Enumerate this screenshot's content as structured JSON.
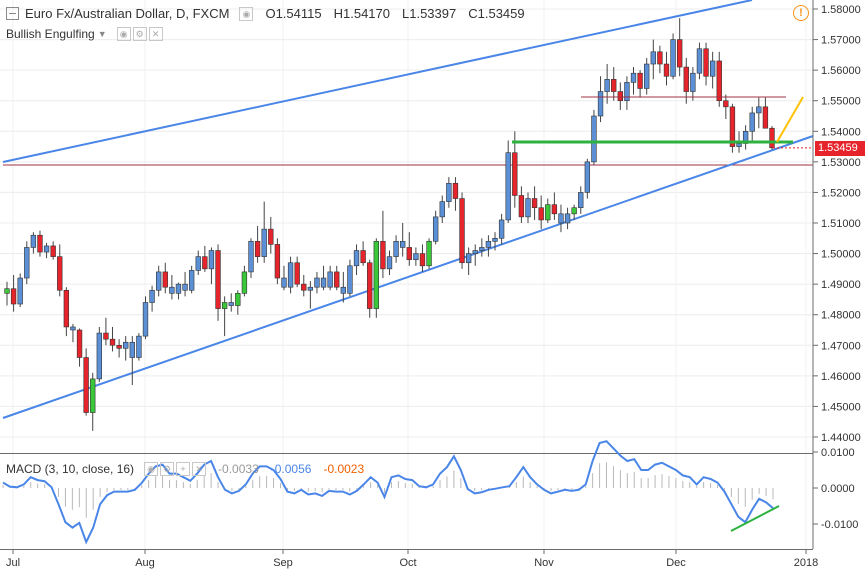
{
  "header": {
    "symbol": "Euro Fx/Australian Dollar, D, FXCM",
    "open_label": "O",
    "open": "1.54115",
    "high_label": "H",
    "high": "1.54170",
    "low_label": "L",
    "low": "1.53397",
    "close_label": "C",
    "close": "1.53459",
    "last_price": "1.53459",
    "alert_glyph": "!",
    "pattern_indicator": "Bullish Engulfing"
  },
  "macd": {
    "label": "MACD (3, 10, close, 16)",
    "v1": "-0.0033",
    "v2": "-0.0056",
    "v3": "-0.0023",
    "ticks": [
      "0.0100",
      "0.0000",
      "-0.0100"
    ]
  },
  "colors": {
    "up": "#3ac73a",
    "down": "#e6242b",
    "neutral": "#5b8fd6",
    "trend": "#4a86e8",
    "support": "#2db240",
    "resistance": "#a03040",
    "arrow": "#ffc200",
    "macd_line": "#4a86e8",
    "macd_hist": "#b8b8b8",
    "divergence": "#2db240",
    "macd_v1": "#999999",
    "macd_v2": "#4a86e8",
    "macd_v3": "#f06000"
  },
  "chart_data": {
    "type": "candlestick",
    "title": "Euro Fx/Australian Dollar, D, FXCM",
    "ylim": [
      1.432,
      1.582
    ],
    "yticks": [
      "1.44000",
      "1.45000",
      "1.46000",
      "1.47000",
      "1.48000",
      "1.49000",
      "1.50000",
      "1.51000",
      "1.52000",
      "1.53000",
      "1.54000",
      "1.55000",
      "1.56000",
      "1.57000",
      "1.58000"
    ],
    "x_labels": [
      "Jul",
      "Aug",
      "Sep",
      "Oct",
      "Nov",
      "Dec",
      "2018"
    ],
    "candles": [
      [
        1.487,
        1.4908,
        1.483,
        1.4885,
        "up"
      ],
      [
        1.4885,
        1.493,
        1.481,
        1.4835,
        "down"
      ],
      [
        1.4835,
        1.4935,
        1.4825,
        1.492,
        "neutral"
      ],
      [
        1.492,
        1.504,
        1.49,
        1.502,
        "neutral"
      ],
      [
        1.502,
        1.507,
        1.5,
        1.506,
        "neutral"
      ],
      [
        1.506,
        1.5075,
        1.499,
        1.5005,
        "down"
      ],
      [
        1.5005,
        1.5035,
        1.4985,
        1.5025,
        "neutral"
      ],
      [
        1.5025,
        1.504,
        1.498,
        1.499,
        "down"
      ],
      [
        1.499,
        1.503,
        1.486,
        1.488,
        "down"
      ],
      [
        1.488,
        1.489,
        1.473,
        1.476,
        "down"
      ],
      [
        1.476,
        1.477,
        1.471,
        1.475,
        "neutral"
      ],
      [
        1.475,
        1.4755,
        1.463,
        1.466,
        "down"
      ],
      [
        1.466,
        1.469,
        1.447,
        1.448,
        "down"
      ],
      [
        1.448,
        1.461,
        1.442,
        1.459,
        "up"
      ],
      [
        1.459,
        1.476,
        1.458,
        1.474,
        "neutral"
      ],
      [
        1.474,
        1.479,
        1.47,
        1.472,
        "down"
      ],
      [
        1.472,
        1.476,
        1.468,
        1.47,
        "down"
      ],
      [
        1.47,
        1.472,
        1.466,
        1.469,
        "down"
      ],
      [
        1.469,
        1.473,
        1.465,
        1.471,
        "neutral"
      ],
      [
        1.471,
        1.473,
        1.457,
        1.466,
        "neutral"
      ],
      [
        1.466,
        1.474,
        1.465,
        1.473,
        "neutral"
      ],
      [
        1.473,
        1.486,
        1.472,
        1.484,
        "neutral"
      ],
      [
        1.484,
        1.4895,
        1.481,
        1.488,
        "neutral"
      ],
      [
        1.488,
        1.496,
        1.486,
        1.494,
        "neutral"
      ],
      [
        1.494,
        1.497,
        1.487,
        1.489,
        "down"
      ],
      [
        1.489,
        1.493,
        1.485,
        1.487,
        "neutral"
      ],
      [
        1.487,
        1.4905,
        1.485,
        1.49,
        "neutral"
      ],
      [
        1.49,
        1.494,
        1.486,
        1.488,
        "neutral"
      ],
      [
        1.488,
        1.496,
        1.487,
        1.4945,
        "neutral"
      ],
      [
        1.4945,
        1.501,
        1.493,
        1.499,
        "neutral"
      ],
      [
        1.499,
        1.5025,
        1.494,
        1.495,
        "down"
      ],
      [
        1.495,
        1.502,
        1.49,
        1.501,
        "neutral"
      ],
      [
        1.501,
        1.503,
        1.478,
        1.482,
        "down"
      ],
      [
        1.482,
        1.486,
        1.473,
        1.484,
        "up"
      ],
      [
        1.484,
        1.487,
        1.481,
        1.483,
        "neutral"
      ],
      [
        1.483,
        1.488,
        1.48,
        1.487,
        "up"
      ],
      [
        1.487,
        1.496,
        1.486,
        1.494,
        "up"
      ],
      [
        1.494,
        1.505,
        1.492,
        1.504,
        "neutral"
      ],
      [
        1.504,
        1.509,
        1.497,
        1.499,
        "down"
      ],
      [
        1.499,
        1.517,
        1.497,
        1.508,
        "neutral"
      ],
      [
        1.508,
        1.512,
        1.5,
        1.503,
        "down"
      ],
      [
        1.503,
        1.505,
        1.49,
        1.492,
        "down"
      ],
      [
        1.492,
        1.496,
        1.488,
        1.489,
        "neutral"
      ],
      [
        1.489,
        1.499,
        1.487,
        1.497,
        "neutral"
      ],
      [
        1.497,
        1.499,
        1.489,
        1.49,
        "down"
      ],
      [
        1.49,
        1.493,
        1.486,
        1.488,
        "down"
      ],
      [
        1.488,
        1.491,
        1.482,
        1.489,
        "neutral"
      ],
      [
        1.489,
        1.494,
        1.487,
        1.492,
        "neutral"
      ],
      [
        1.492,
        1.496,
        1.488,
        1.489,
        "neutral"
      ],
      [
        1.489,
        1.496,
        1.488,
        1.494,
        "neutral"
      ],
      [
        1.494,
        1.496,
        1.488,
        1.489,
        "down"
      ],
      [
        1.489,
        1.494,
        1.484,
        1.487,
        "neutral"
      ],
      [
        1.487,
        1.498,
        1.486,
        1.496,
        "neutral"
      ],
      [
        1.496,
        1.503,
        1.493,
        1.501,
        "neutral"
      ],
      [
        1.501,
        1.504,
        1.496,
        1.497,
        "down"
      ],
      [
        1.497,
        1.498,
        1.479,
        1.482,
        "down"
      ],
      [
        1.482,
        1.505,
        1.479,
        1.504,
        "up"
      ],
      [
        1.504,
        1.514,
        1.492,
        1.495,
        "down"
      ],
      [
        1.495,
        1.501,
        1.493,
        1.499,
        "neutral"
      ],
      [
        1.499,
        1.506,
        1.497,
        1.504,
        "neutral"
      ],
      [
        1.504,
        1.51,
        1.499,
        1.502,
        "neutral"
      ],
      [
        1.502,
        1.507,
        1.496,
        1.498,
        "down"
      ],
      [
        1.498,
        1.502,
        1.496,
        1.5,
        "neutral"
      ],
      [
        1.5,
        1.503,
        1.494,
        1.496,
        "down"
      ],
      [
        1.496,
        1.505,
        1.495,
        1.504,
        "up"
      ],
      [
        1.504,
        1.514,
        1.503,
        1.512,
        "neutral"
      ],
      [
        1.512,
        1.519,
        1.51,
        1.517,
        "neutral"
      ],
      [
        1.517,
        1.525,
        1.515,
        1.523,
        "neutral"
      ],
      [
        1.523,
        1.525,
        1.514,
        1.518,
        "down"
      ],
      [
        1.518,
        1.52,
        1.495,
        1.497,
        "down"
      ],
      [
        1.497,
        1.502,
        1.493,
        1.5,
        "neutral"
      ],
      [
        1.5,
        1.503,
        1.496,
        1.501,
        "neutral"
      ],
      [
        1.501,
        1.505,
        1.499,
        1.502,
        "neutral"
      ],
      [
        1.502,
        1.506,
        1.499,
        1.504,
        "neutral"
      ],
      [
        1.504,
        1.507,
        1.501,
        1.505,
        "neutral"
      ],
      [
        1.505,
        1.513,
        1.503,
        1.511,
        "neutral"
      ],
      [
        1.511,
        1.537,
        1.51,
        1.533,
        "neutral"
      ],
      [
        1.533,
        1.54,
        1.515,
        1.519,
        "down"
      ],
      [
        1.519,
        1.522,
        1.51,
        1.512,
        "down"
      ],
      [
        1.512,
        1.52,
        1.51,
        1.518,
        "neutral"
      ],
      [
        1.518,
        1.522,
        1.511,
        1.515,
        "down"
      ],
      [
        1.515,
        1.519,
        1.508,
        1.511,
        "down"
      ],
      [
        1.511,
        1.518,
        1.51,
        1.516,
        "up"
      ],
      [
        1.516,
        1.52,
        1.511,
        1.513,
        "down"
      ],
      [
        1.513,
        1.516,
        1.507,
        1.51,
        "neutral"
      ],
      [
        1.51,
        1.515,
        1.508,
        1.513,
        "neutral"
      ],
      [
        1.513,
        1.516,
        1.511,
        1.515,
        "up"
      ],
      [
        1.515,
        1.522,
        1.513,
        1.52,
        "neutral"
      ],
      [
        1.52,
        1.531,
        1.518,
        1.53,
        "neutral"
      ],
      [
        1.53,
        1.547,
        1.529,
        1.545,
        "neutral"
      ],
      [
        1.545,
        1.558,
        1.543,
        1.553,
        "neutral"
      ],
      [
        1.553,
        1.562,
        1.549,
        1.557,
        "neutral"
      ],
      [
        1.557,
        1.561,
        1.55,
        1.553,
        "down"
      ],
      [
        1.553,
        1.556,
        1.547,
        1.55,
        "down"
      ],
      [
        1.55,
        1.558,
        1.547,
        1.556,
        "neutral"
      ],
      [
        1.556,
        1.561,
        1.552,
        1.559,
        "neutral"
      ],
      [
        1.559,
        1.56,
        1.551,
        1.554,
        "down"
      ],
      [
        1.554,
        1.564,
        1.552,
        1.562,
        "neutral"
      ],
      [
        1.562,
        1.57,
        1.557,
        1.566,
        "neutral"
      ],
      [
        1.566,
        1.568,
        1.559,
        1.562,
        "down"
      ],
      [
        1.562,
        1.566,
        1.555,
        1.558,
        "down"
      ],
      [
        1.558,
        1.572,
        1.557,
        1.57,
        "neutral"
      ],
      [
        1.57,
        1.577,
        1.558,
        1.561,
        "down"
      ],
      [
        1.561,
        1.564,
        1.549,
        1.553,
        "down"
      ],
      [
        1.553,
        1.561,
        1.55,
        1.559,
        "neutral"
      ],
      [
        1.559,
        1.569,
        1.557,
        1.567,
        "neutral"
      ],
      [
        1.567,
        1.569,
        1.555,
        1.558,
        "down"
      ],
      [
        1.558,
        1.566,
        1.554,
        1.563,
        "neutral"
      ],
      [
        1.563,
        1.566,
        1.548,
        1.55,
        "down"
      ],
      [
        1.55,
        1.552,
        1.544,
        1.548,
        "down"
      ],
      [
        1.548,
        1.549,
        1.533,
        1.535,
        "down"
      ],
      [
        1.535,
        1.54,
        1.533,
        1.536,
        "neutral"
      ],
      [
        1.536,
        1.542,
        1.534,
        1.54,
        "neutral"
      ],
      [
        1.54,
        1.548,
        1.537,
        1.546,
        "neutral"
      ],
      [
        1.546,
        1.551,
        1.541,
        1.548,
        "neutral"
      ],
      [
        1.548,
        1.551,
        1.541,
        1.541,
        "down"
      ],
      [
        1.541,
        1.5417,
        1.534,
        1.5346,
        "down"
      ]
    ],
    "trendlines": {
      "upper_channel": [
        [
          3,
          162
        ],
        [
          752,
          0
        ]
      ],
      "lower_channel": [
        [
          3,
          418
        ],
        [
          813,
          136
        ]
      ],
      "support_green": [
        [
          512,
          142
        ],
        [
          793,
          142
        ]
      ],
      "resistance_high": [
        [
          581,
          97
        ],
        [
          786,
          97
        ]
      ],
      "resistance_low": [
        [
          3,
          165
        ],
        [
          813,
          165
        ]
      ],
      "yellow_arrow": [
        [
          777,
          142
        ],
        [
          803,
          97
        ]
      ]
    },
    "macd_line": [
      [
        0.0015,
        0.0004,
        0.0002,
        0.001,
        0.003,
        0.0022,
        0.0019,
        0.0002,
        -0.0045,
        -0.0095,
        -0.011,
        -0.0097,
        -0.015,
        -0.011,
        -0.0045,
        -0.002,
        -0.001,
        -0.001,
        -0.001,
        -0.0005,
        0.0014,
        0.004,
        0.006,
        0.0065,
        0.004,
        0.004,
        0.003,
        0.002,
        0.004,
        0.0065,
        0.0075,
        0.003,
        -0.0005,
        -0.0015,
        -0.0008,
        0.001,
        0.004,
        0.006,
        0.006,
        0.005,
        0.0025,
        -0.001,
        -0.0015,
        -0.0005,
        -0.0018,
        -0.0015,
        -0.0022,
        -0.0008,
        -0.001,
        -0.001,
        -0.0018,
        -0.0008,
        0.001,
        0.003,
        0.0015,
        -0.0025,
        0.003,
        0.0035,
        0.0025,
        0.0022,
        0.0005,
        0.0002,
        0.001,
        0.004,
        0.0058,
        0.0088,
        0.005,
        -0.0003,
        -0.0015,
        -0.0012,
        -0.0005,
        -0.0002,
        0.0002,
        0.0005,
        0.003,
        0.0058,
        0.003,
        0.001,
        -0.0005,
        -0.0015,
        -0.001,
        -0.0005,
        -0.0008,
        -0.0005,
        0.001,
        0.0075,
        0.0125,
        0.013,
        0.011,
        0.009,
        0.0075,
        0.008,
        0.005,
        0.005,
        0.0065,
        0.007,
        0.006,
        0.005,
        0.0035,
        0.003,
        0.001,
        0.003,
        0.0025,
        0.0015,
        -0.001,
        -0.0045,
        -0.008,
        -0.0095,
        -0.006,
        -0.003,
        -0.004,
        -0.0056
      ]
    ],
    "macd_x_range": [
      3,
      773
    ],
    "macd_ylim": [
      -0.0165,
      0.0165
    ]
  }
}
